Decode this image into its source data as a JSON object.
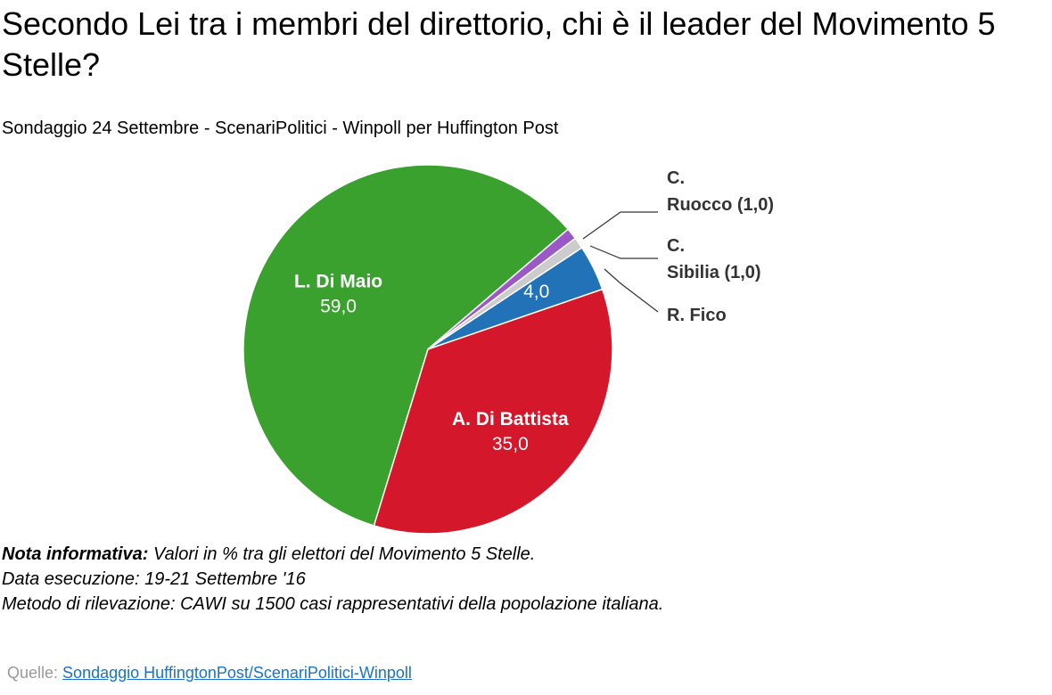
{
  "title": "Secondo Lei tra i membri del direttorio, chi è il leader del Movimento 5 Stelle?",
  "subtitle": "Sondaggio 24 Settembre - ScenariPolitici - Winpoll per Huffington Post",
  "chart_data": {
    "type": "pie",
    "title": "Secondo Lei tra i membri del direttorio, chi è il leader del Movimento 5 Stelle?",
    "slices": [
      {
        "label": "L. Di Maio",
        "value": 59.0,
        "value_label": "59,0",
        "color": "#3aa12e",
        "label_position": "inside"
      },
      {
        "label": "A. Di Battista",
        "value": 35.0,
        "value_label": "35,0",
        "color": "#d4172a",
        "label_position": "inside"
      },
      {
        "label": "R. Fico",
        "value": 4.0,
        "value_label": "4,0",
        "color": "#2272b8",
        "label_position": "outside"
      },
      {
        "label": "C. Sibilia",
        "value": 1.0,
        "value_label": "1,0",
        "color": "#cccccc",
        "label_position": "outside"
      },
      {
        "label": "C. Ruocco",
        "value": 1.0,
        "value_label": "1,0",
        "color": "#9b59c8",
        "label_position": "outside"
      }
    ],
    "outside_labels": {
      "ruocco": [
        "C.",
        "Ruocco (1,0)"
      ],
      "sibilia": [
        "C.",
        "Sibilia (1,0)"
      ],
      "fico": [
        "R. Fico"
      ]
    }
  },
  "note": {
    "bold_label": "Nota informativa:",
    "line1": " Valori in % tra gli elettori del Movimento 5 Stelle.",
    "line2": "Data esecuzione: 19-21 Settembre '16",
    "line3": "Metodo di rilevazione: CAWI su 1500 casi rappresentativi della popolazione italiana."
  },
  "source": {
    "prefix": "Quelle: ",
    "link_text": "Sondaggio HuffingtonPost/ScenariPolitici-Winpoll"
  }
}
